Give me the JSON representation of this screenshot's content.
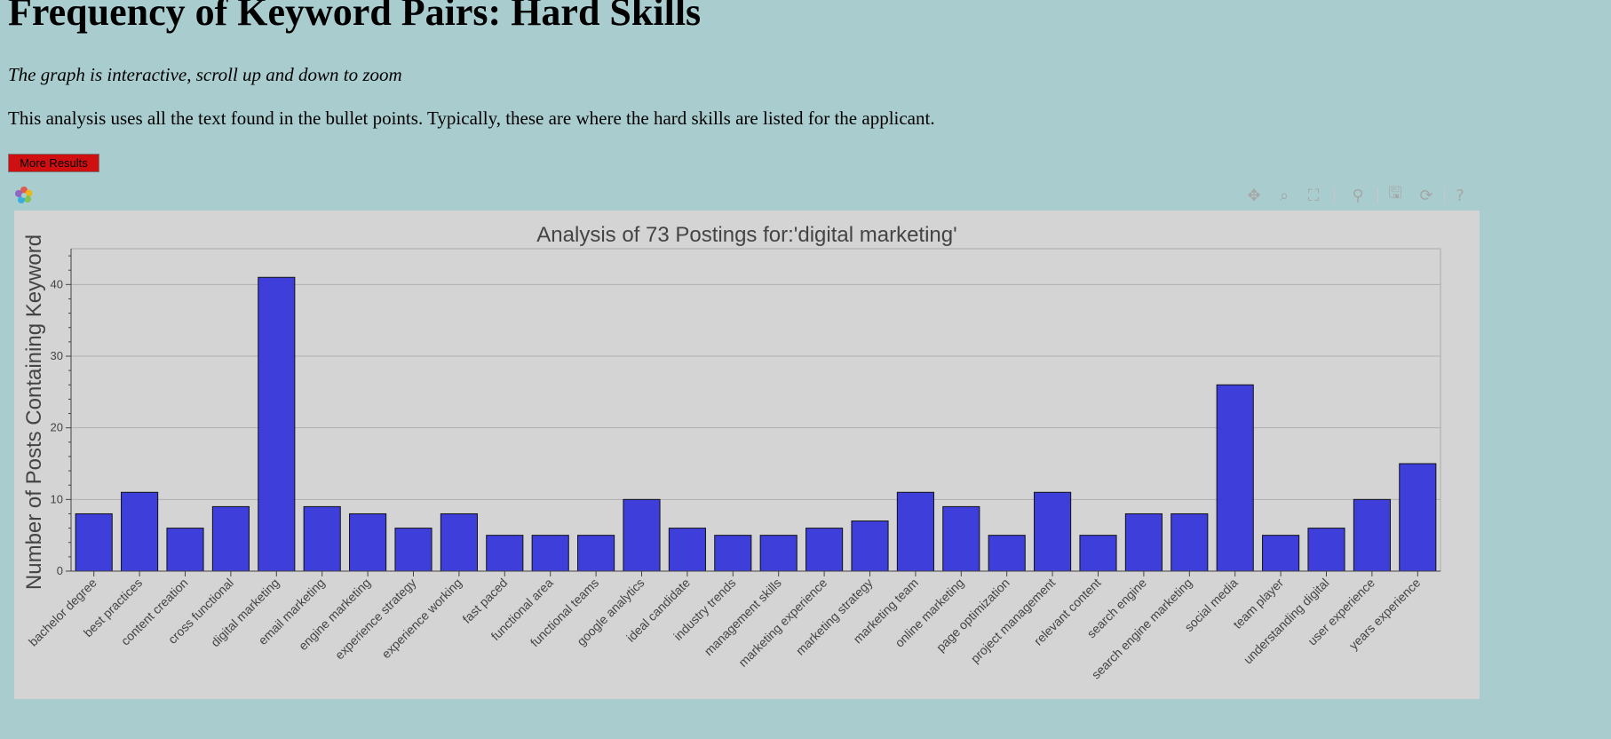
{
  "page": {
    "heading": "Frequency of Keyword Pairs: Hard Skills",
    "subtitle": "The graph is interactive, scroll up and down to zoom",
    "description": "This analysis uses all the text found in the bullet points. Typically, these are where the hard skills are listed for the applicant.",
    "more_button_label": "More Results"
  },
  "toolbar": {
    "tools": [
      {
        "name": "pan-tool",
        "icon": "move-icon",
        "glyph": "✥",
        "active": true
      },
      {
        "name": "box-zoom-tool",
        "icon": "zoom-box-icon",
        "glyph": "⌕",
        "active": false
      },
      {
        "name": "box-select-tool",
        "icon": "select-box-icon",
        "glyph": "⛶",
        "active": false
      },
      {
        "name": "wheel-zoom-tool",
        "icon": "wheel-zoom-icon",
        "glyph": "⚲",
        "active": true
      },
      {
        "name": "save-tool",
        "icon": "save-icon",
        "glyph": "🖫",
        "active": false
      },
      {
        "name": "reset-tool",
        "icon": "reset-icon",
        "glyph": "⟳",
        "active": false
      },
      {
        "name": "help-tool",
        "icon": "help-icon",
        "glyph": "?",
        "active": false
      }
    ]
  },
  "colors": {
    "background": "#a9cdcf",
    "plot_background": "#d4d4d4",
    "bar_fill": "#3636da",
    "bar_outline": "#111111",
    "button": "#d01010"
  },
  "chart_data": {
    "type": "bar",
    "title": "Analysis of 73 Postings for:'digital marketing'",
    "xlabel": "",
    "ylabel": "Number of Posts Containing Keyword",
    "ylim": [
      0,
      45
    ],
    "yticks": [
      0,
      10,
      20,
      30,
      40
    ],
    "grid": true,
    "categories": [
      "bachelor degree",
      "best practices",
      "content creation",
      "cross functional",
      "digital marketing",
      "email marketing",
      "engine marketing",
      "experience strategy",
      "experience working",
      "fast paced",
      "functional area",
      "functional teams",
      "google analytics",
      "ideal candidate",
      "industry trends",
      "management skills",
      "marketing experience",
      "marketing strategy",
      "marketing team",
      "online marketing",
      "page optimization",
      "project management",
      "relevant content",
      "search engine",
      "search engine marketing",
      "social media",
      "team player",
      "understanding digital",
      "user experience",
      "years experience"
    ],
    "values": [
      8,
      11,
      6,
      9,
      41,
      9,
      8,
      6,
      8,
      5,
      5,
      5,
      10,
      6,
      5,
      5,
      6,
      7,
      11,
      9,
      5,
      11,
      5,
      8,
      8,
      26,
      5,
      6,
      10,
      15
    ]
  }
}
